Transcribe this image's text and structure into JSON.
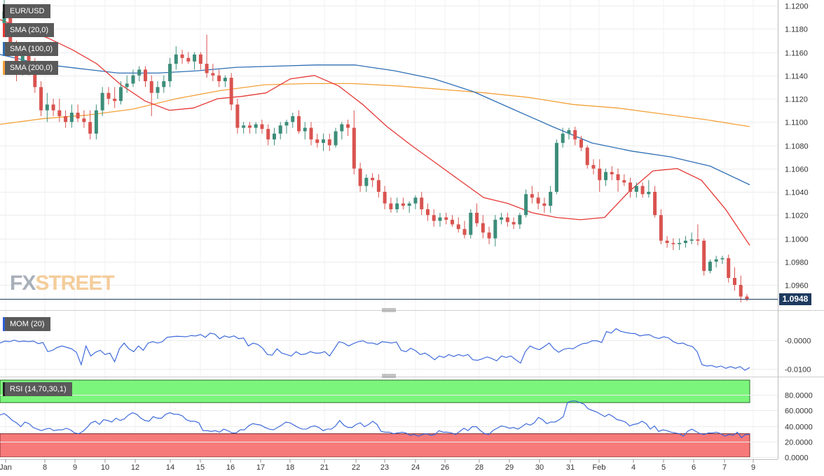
{
  "logo": {
    "fx": "FX",
    "street": "STREET"
  },
  "last_price_label": "1.0948",
  "legends": {
    "symbol": "EUR/USD",
    "sma20": "SMA (20,0)",
    "sma100": "SMA (100,0)",
    "sma200": "SMA (200,0)",
    "mom": "MOM (20)",
    "rsi": "RSI (14,70,30,1)"
  },
  "colors": {
    "bull": "#3c8d7a",
    "bear": "#d9534f",
    "sma20": "#e53935",
    "sma100": "#2f6fb5",
    "sma200": "#f4a13a",
    "indicator": "#2f5fd9",
    "rsi_overbought": "#7cf57c",
    "rsi_oversold": "#f77a7a"
  },
  "chart_data": [
    {
      "type": "candlestick",
      "title": "EUR/USD",
      "ylim": [
        1.094,
        1.1205
      ],
      "y_ticks": [
        "1.0960",
        "1.0980",
        "1.1000",
        "1.1020",
        "1.1040",
        "1.1060",
        "1.1080",
        "1.1100",
        "1.1120",
        "1.1140",
        "1.1160",
        "1.1180",
        "1.1200"
      ],
      "x_ticks": [
        "Jan",
        "8",
        "9",
        "10",
        "12",
        "14",
        "15",
        "16",
        "17",
        "18",
        "21",
        "22",
        "23",
        "24",
        "26",
        "28",
        "29",
        "30",
        "31",
        "Feb",
        "4",
        "5",
        "6",
        "7",
        "9"
      ],
      "last_price": 1.0948,
      "candles_ohlc": [
        [
          1.1185,
          1.1205,
          1.1175,
          1.1195
        ],
        [
          1.1195,
          1.12,
          1.116,
          1.1165
        ],
        [
          1.1165,
          1.117,
          1.1135,
          1.1145
        ],
        [
          1.1145,
          1.1165,
          1.114,
          1.116
        ],
        [
          1.116,
          1.1165,
          1.114,
          1.115
        ],
        [
          1.115,
          1.1155,
          1.1125,
          1.113
        ],
        [
          1.113,
          1.1135,
          1.1105,
          1.111
        ],
        [
          1.111,
          1.1125,
          1.11,
          1.1115
        ],
        [
          1.1115,
          1.112,
          1.1105,
          1.111
        ],
        [
          1.111,
          1.112,
          1.11,
          1.1105
        ],
        [
          1.1105,
          1.111,
          1.1095,
          1.11
        ],
        [
          1.11,
          1.1115,
          1.1095,
          1.1108
        ],
        [
          1.1108,
          1.1115,
          1.11,
          1.1103
        ],
        [
          1.1103,
          1.111,
          1.1095,
          1.11
        ],
        [
          1.11,
          1.111,
          1.1085,
          1.109
        ],
        [
          1.109,
          1.1115,
          1.1085,
          1.111
        ],
        [
          1.111,
          1.113,
          1.1105,
          1.1125
        ],
        [
          1.1125,
          1.113,
          1.1115,
          1.112
        ],
        [
          1.112,
          1.113,
          1.1112,
          1.1118
        ],
        [
          1.1118,
          1.1135,
          1.1115,
          1.113
        ],
        [
          1.113,
          1.114,
          1.1125,
          1.1133
        ],
        [
          1.1133,
          1.1145,
          1.113,
          1.114
        ],
        [
          1.114,
          1.1148,
          1.1135,
          1.1145
        ],
        [
          1.1145,
          1.1148,
          1.113,
          1.1135
        ],
        [
          1.1135,
          1.114,
          1.1105,
          1.1125
        ],
        [
          1.1125,
          1.1135,
          1.112,
          1.113
        ],
        [
          1.113,
          1.114,
          1.1125,
          1.1135
        ],
        [
          1.1135,
          1.1155,
          1.113,
          1.115
        ],
        [
          1.115,
          1.1165,
          1.1145,
          1.1158
        ],
        [
          1.1158,
          1.1162,
          1.115,
          1.1155
        ],
        [
          1.1155,
          1.116,
          1.115,
          1.1152
        ],
        [
          1.1152,
          1.116,
          1.1145,
          1.1158
        ],
        [
          1.1158,
          1.116,
          1.1145,
          1.115
        ],
        [
          1.115,
          1.1175,
          1.1138,
          1.1142
        ],
        [
          1.1142,
          1.115,
          1.1135,
          1.114
        ],
        [
          1.114,
          1.1145,
          1.113,
          1.1135
        ],
        [
          1.1135,
          1.114,
          1.113,
          1.1138
        ],
        [
          1.1138,
          1.1142,
          1.111,
          1.1115
        ],
        [
          1.1115,
          1.112,
          1.109,
          1.1095
        ],
        [
          1.1095,
          1.11,
          1.109,
          1.1097
        ],
        [
          1.1097,
          1.11,
          1.109,
          1.1095
        ],
        [
          1.1095,
          1.11,
          1.109,
          1.1098
        ],
        [
          1.1098,
          1.1102,
          1.109,
          1.1094
        ],
        [
          1.1094,
          1.1098,
          1.108,
          1.1085
        ],
        [
          1.1085,
          1.1095,
          1.108,
          1.109
        ],
        [
          1.109,
          1.11,
          1.1085,
          1.1097
        ],
        [
          1.1097,
          1.1102,
          1.109,
          1.11
        ],
        [
          1.11,
          1.1108,
          1.1095,
          1.1105
        ],
        [
          1.1105,
          1.111,
          1.109,
          1.1092
        ],
        [
          1.1092,
          1.11,
          1.1085,
          1.1095
        ],
        [
          1.1095,
          1.11,
          1.108,
          1.1085
        ],
        [
          1.1085,
          1.109,
          1.1078,
          1.1082
        ],
        [
          1.1082,
          1.109,
          1.1075,
          1.1085
        ],
        [
          1.1085,
          1.109,
          1.1075,
          1.108
        ],
        [
          1.108,
          1.1095,
          1.1078,
          1.1092
        ],
        [
          1.1092,
          1.11,
          1.1085,
          1.1098
        ],
        [
          1.1098,
          1.1102,
          1.1088,
          1.1095
        ],
        [
          1.1095,
          1.111,
          1.1055,
          1.106
        ],
        [
          1.106,
          1.1065,
          1.104,
          1.1045
        ],
        [
          1.1045,
          1.1055,
          1.104,
          1.1052
        ],
        [
          1.1052,
          1.1056,
          1.1044,
          1.105
        ],
        [
          1.105,
          1.1055,
          1.1035,
          1.104
        ],
        [
          1.104,
          1.1045,
          1.1025,
          1.103
        ],
        [
          1.103,
          1.1035,
          1.1022,
          1.1025
        ],
        [
          1.1025,
          1.1035,
          1.1022,
          1.103
        ],
        [
          1.103,
          1.1035,
          1.1025,
          1.1028
        ],
        [
          1.1028,
          1.1032,
          1.1022,
          1.103
        ],
        [
          1.103,
          1.1037,
          1.1025,
          1.1035
        ],
        [
          1.1035,
          1.104,
          1.102,
          1.1025
        ],
        [
          1.1025,
          1.103,
          1.1015,
          1.102
        ],
        [
          1.102,
          1.1025,
          1.101,
          1.1015
        ],
        [
          1.1015,
          1.1022,
          1.101,
          1.1018
        ],
        [
          1.1018,
          1.1022,
          1.1012,
          1.1016
        ],
        [
          1.1016,
          1.102,
          1.101,
          1.1012
        ],
        [
          1.1012,
          1.1018,
          1.1005,
          1.1008
        ],
        [
          1.1008,
          1.1015,
          1.1,
          1.1003
        ],
        [
          1.1003,
          1.1025,
          1.1,
          1.1022
        ],
        [
          1.1022,
          1.103,
          1.101,
          1.1013
        ],
        [
          1.1013,
          1.102,
          1.1,
          1.1005
        ],
        [
          1.1005,
          1.101,
          1.0995,
          1.1
        ],
        [
          1.1,
          1.102,
          1.0993,
          1.1016
        ],
        [
          1.1016,
          1.1022,
          1.1012,
          1.1018
        ],
        [
          1.1018,
          1.1022,
          1.101,
          1.1014
        ],
        [
          1.1014,
          1.1018,
          1.1008,
          1.1012
        ],
        [
          1.1012,
          1.1022,
          1.1008,
          1.102
        ],
        [
          1.102,
          1.1042,
          1.1018,
          1.1038
        ],
        [
          1.1038,
          1.1045,
          1.103,
          1.1035
        ],
        [
          1.1035,
          1.104,
          1.1025,
          1.103
        ],
        [
          1.103,
          1.1035,
          1.1022,
          1.1028
        ],
        [
          1.1028,
          1.1045,
          1.1022,
          1.104
        ],
        [
          1.104,
          1.1085,
          1.1038,
          1.1082
        ],
        [
          1.1082,
          1.1095,
          1.1078,
          1.109
        ],
        [
          1.109,
          1.1095,
          1.1085,
          1.1093
        ],
        [
          1.1093,
          1.1096,
          1.108,
          1.1085
        ],
        [
          1.1085,
          1.1088,
          1.1075,
          1.1078
        ],
        [
          1.1078,
          1.108,
          1.106,
          1.1063
        ],
        [
          1.1063,
          1.1068,
          1.1055,
          1.106
        ],
        [
          1.106,
          1.1068,
          1.104,
          1.105
        ],
        [
          1.105,
          1.106,
          1.1045,
          1.1057
        ],
        [
          1.1057,
          1.1062,
          1.105,
          1.1055
        ],
        [
          1.1055,
          1.106,
          1.104,
          1.105
        ],
        [
          1.105,
          1.1055,
          1.1045,
          1.1048
        ],
        [
          1.1048,
          1.1052,
          1.1035,
          1.104
        ],
        [
          1.104,
          1.1048,
          1.1035,
          1.1045
        ],
        [
          1.1045,
          1.1048,
          1.1035,
          1.1038
        ],
        [
          1.1038,
          1.105,
          1.1035,
          1.104
        ],
        [
          1.104,
          1.1045,
          1.1018,
          1.102
        ],
        [
          1.102,
          1.1025,
          1.0995,
          1.0998
        ],
        [
          1.0998,
          1.1002,
          1.0992,
          1.0996
        ],
        [
          1.0996,
          1.1,
          1.099,
          1.0995
        ],
        [
          1.0995,
          1.1,
          1.099,
          1.0996
        ],
        [
          1.0996,
          1.1002,
          1.0992,
          1.0998
        ],
        [
          1.0998,
          1.1005,
          1.0995,
          1.0999
        ],
        [
          1.0999,
          1.1012,
          1.0994,
          1.0998
        ],
        [
          1.0998,
          1.1,
          1.0968,
          1.0972
        ],
        [
          1.0972,
          1.0982,
          1.097,
          1.098
        ],
        [
          1.098,
          1.0985,
          1.0975,
          1.0982
        ],
        [
          1.0982,
          1.0985,
          1.0978,
          1.0983
        ],
        [
          1.0983,
          1.0986,
          1.0962,
          1.0966
        ],
        [
          1.0966,
          1.0975,
          1.0955,
          1.096
        ],
        [
          1.096,
          1.0968,
          1.0945,
          1.095
        ],
        [
          1.095,
          1.0952,
          1.0946,
          1.0948
        ]
      ],
      "sma20": [
        1.1188,
        1.118,
        1.1172,
        1.1162,
        1.115,
        1.1132,
        1.1118,
        1.111,
        1.1112,
        1.112,
        1.1122,
        1.1125,
        1.1137,
        1.114,
        1.1131,
        1.1115,
        1.1096,
        1.108,
        1.1065,
        1.105,
        1.1035,
        1.103,
        1.1022,
        1.1018,
        1.1016,
        1.1018,
        1.104,
        1.1058,
        1.106,
        1.105,
        1.1025,
        1.0994
      ],
      "sma100": [
        1.1158,
        1.115,
        1.1146,
        1.1142,
        1.1142,
        1.1144,
        1.1147,
        1.1148,
        1.1149,
        1.1149,
        1.1144,
        1.1137,
        1.1126,
        1.1111,
        1.1096,
        1.1082,
        1.1075,
        1.107,
        1.1062,
        1.1046
      ],
      "sma200": [
        1.1098,
        1.1103,
        1.1106,
        1.1111,
        1.112,
        1.1127,
        1.1132,
        1.1133,
        1.1133,
        1.1131,
        1.1128,
        1.1125,
        1.1121,
        1.1115,
        1.1112,
        1.1107,
        1.1102,
        1.1096
      ]
    },
    {
      "type": "line",
      "title": "MOM (20)",
      "ylim": [
        -0.0115,
        0.0035
      ],
      "y_ticks": [
        "-0.0000",
        "-0.0100"
      ],
      "values": [
        -0.001,
        -0.0003,
        -0.0005,
        0.0,
        -0.0005,
        -0.0003,
        -0.0005,
        -0.0003,
        -0.0012,
        -0.0008,
        -0.004,
        -0.0035,
        -0.0025,
        -0.002,
        -0.0025,
        -0.003,
        -0.0042,
        -0.0085,
        -0.002,
        -0.0055,
        -0.0042,
        -0.0035,
        -0.005,
        -0.0045,
        -0.0075,
        -0.003,
        -0.001,
        -0.003,
        -0.004,
        -0.002,
        -0.0035,
        -0.001,
        -0.0005,
        -0.001,
        -0.0005,
        0.001,
        0.0012,
        0.0014,
        0.0013,
        0.0012,
        0.0016,
        0.0015,
        0.002,
        0.001,
        0.0025,
        0.0021,
        0.0005,
        0.0015,
        0.001,
        0.0015,
        0.0005,
        0.0008,
        -0.002,
        -0.001,
        -0.0015,
        -0.0028,
        -0.005,
        -0.0052,
        -0.003,
        -0.0045,
        -0.005,
        -0.0055,
        -0.004,
        -0.005,
        -0.0048,
        -0.004,
        -0.0045,
        -0.0045,
        -0.004,
        -0.0055,
        -0.003,
        -0.0005,
        -0.001,
        -0.002,
        -0.0012,
        -0.0005,
        -0.0002,
        -0.001,
        -0.001,
        -0.0015,
        -0.0005,
        -0.0007,
        -0.001,
        -0.0006,
        -0.0035,
        -0.004,
        -0.0028,
        -0.0036,
        -0.005,
        -0.0045,
        -0.0055,
        -0.0068,
        -0.0055,
        -0.006,
        -0.005,
        -0.0057,
        -0.005,
        -0.0055,
        -0.005,
        -0.0068,
        -0.007,
        -0.0065,
        -0.0058,
        -0.0064,
        -0.0072,
        -0.0055,
        -0.006,
        -0.0055,
        -0.0068,
        -0.008,
        -0.004,
        -0.002,
        -0.0028,
        -0.0033,
        -0.0022,
        -0.001,
        -0.003,
        -0.0042,
        -0.0032,
        -0.0028,
        -0.003,
        -0.002,
        -0.0012,
        -0.001,
        -0.0002,
        -0.0002,
        -0.0008,
        0.003,
        0.0025,
        0.004,
        0.0031,
        0.0027,
        0.0024,
        0.0023,
        0.0015,
        0.0018,
        0.0019,
        0.001,
        0.0006,
        0.0012,
        0.0008,
        -0.0005,
        -0.0012,
        -0.001,
        -0.0018,
        -0.0022,
        -0.004,
        -0.0085,
        -0.009,
        -0.0088,
        -0.0094,
        -0.009,
        -0.0098,
        -0.0092,
        -0.0098,
        -0.0092,
        -0.0105,
        -0.0095
      ]
    },
    {
      "type": "line",
      "title": "RSI (14,70,30,1)",
      "ylim": [
        0,
        100
      ],
      "y_ticks": [
        "0.0000",
        "20.0000",
        "40.0000",
        "60.0000",
        "80.0000"
      ],
      "overbought": 70,
      "oversold": 30,
      "values": [
        54,
        56,
        52,
        47,
        44,
        39,
        45,
        43,
        38,
        36,
        34,
        36,
        37,
        34,
        35,
        35,
        37,
        35,
        31,
        30,
        33,
        38,
        44,
        46,
        42,
        48,
        47,
        45,
        50,
        47,
        49,
        54,
        57,
        55,
        50,
        47,
        46,
        52,
        50,
        50,
        55,
        57,
        55,
        55,
        53,
        48,
        46,
        46,
        44,
        34,
        34,
        33,
        34,
        32,
        36,
        34,
        31,
        31,
        35,
        35,
        40,
        43,
        42,
        41,
        38,
        36,
        35,
        38,
        41,
        45,
        44,
        41,
        38,
        36,
        36,
        39,
        40,
        38,
        34,
        36,
        36,
        40,
        47,
        41,
        38,
        38,
        42,
        44,
        39,
        42,
        46,
        42,
        33,
        32,
        32,
        30,
        31,
        32,
        31,
        28,
        29,
        27,
        29,
        30,
        28,
        29,
        34,
        32,
        32,
        31,
        29,
        33,
        37,
        34,
        39,
        39,
        34,
        30,
        29,
        34,
        37,
        40,
        39,
        37,
        38,
        36,
        39,
        43,
        41,
        44,
        51,
        48,
        43,
        45,
        45,
        48,
        52,
        70,
        72,
        72,
        70,
        68,
        62,
        60,
        58,
        55,
        52,
        55,
        52,
        48,
        47,
        45,
        40,
        42,
        43,
        46,
        43,
        36,
        40,
        33,
        35,
        34,
        32,
        31,
        30,
        27,
        33,
        36,
        33,
        30,
        29,
        31,
        31,
        32,
        30,
        27,
        29,
        28,
        32,
        25,
        29,
        29
      ]
    }
  ]
}
